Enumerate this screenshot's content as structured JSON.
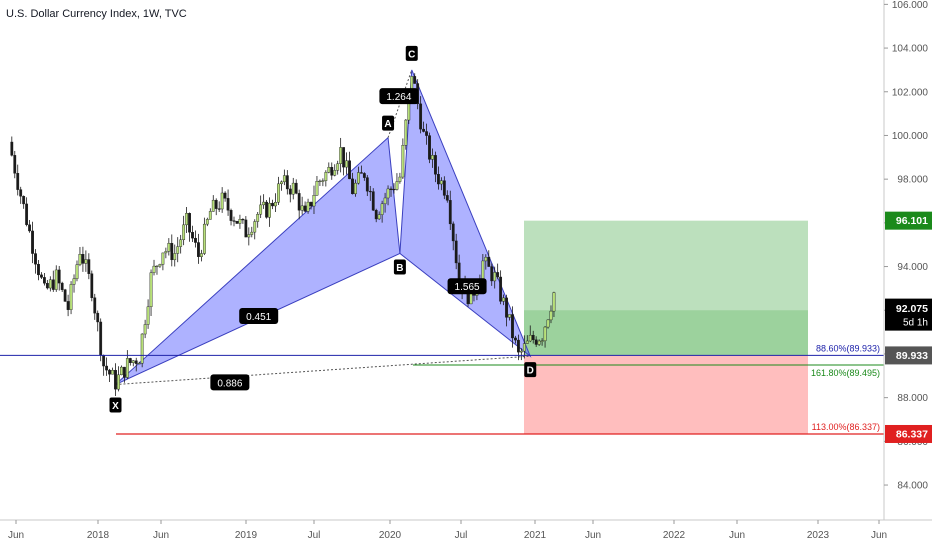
{
  "title": "U.S. Dollar Currency Index, 1W, TVC",
  "colors": {
    "candle_up": "#26a69a",
    "candle_down": "#ef5350",
    "pattern_fill": "#6c72ff",
    "target_zone": "#a5d6a7",
    "stop_zone": "#ffb3b3",
    "level_blue": "#1e22aa",
    "level_green": "#1b8a1b",
    "level_red": "#e02020",
    "current_price_bg": "#000000",
    "badge_green": "#1b8a1b",
    "badge_gray": "#555555",
    "badge_red": "#e02020"
  },
  "chart_data": {
    "type": "line",
    "symbol": "U.S. Dollar Currency Index",
    "interval": "1W",
    "source": "TVC",
    "y_axis": {
      "ticks": [
        "84.000",
        "86.000",
        "88.000",
        "90.000",
        "92.000",
        "94.000",
        "96.000",
        "98.000",
        "100.000",
        "102.000",
        "104.000",
        "106.000"
      ],
      "ylim": [
        82.4,
        106.2
      ]
    },
    "x_axis": {
      "ticks": [
        "Jun",
        "2018",
        "Jun",
        "2019",
        "Jul",
        "2020",
        "Apr",
        "Jul",
        "Oct",
        "2021",
        "Jun",
        "2022",
        "Jun",
        "2023",
        "Jun"
      ]
    },
    "price_path": [
      [
        "2017-05",
        99.7
      ],
      [
        "2017-06",
        97.3
      ],
      [
        "2017-07",
        95.0
      ],
      [
        "2017-08",
        92.8
      ],
      [
        "2017-09",
        93.5
      ],
      [
        "2017-10",
        92.1
      ],
      [
        "2017-11",
        94.8
      ],
      [
        "2017-12",
        93.0
      ],
      [
        "2018-01",
        89.5
      ],
      [
        "2018-02",
        88.7
      ],
      [
        "2018-03",
        89.5
      ],
      [
        "2018-04",
        89.9
      ],
      [
        "2018-05",
        93.5
      ],
      [
        "2018-06",
        94.8
      ],
      [
        "2018-07",
        94.6
      ],
      [
        "2018-08",
        96.0
      ],
      [
        "2018-09",
        94.5
      ],
      [
        "2018-10",
        96.5
      ],
      [
        "2018-11",
        97.0
      ],
      [
        "2018-12",
        96.3
      ],
      [
        "2019-01",
        95.6
      ],
      [
        "2019-02",
        96.4
      ],
      [
        "2019-03",
        96.7
      ],
      [
        "2019-04",
        97.8
      ],
      [
        "2019-05",
        97.6
      ],
      [
        "2019-06",
        96.2
      ],
      [
        "2019-07",
        97.8
      ],
      [
        "2019-08",
        98.4
      ],
      [
        "2019-09",
        99.3
      ],
      [
        "2019-10",
        97.5
      ],
      [
        "2019-11",
        98.3
      ],
      [
        "2019-12",
        96.5
      ],
      [
        "2020-01",
        97.4
      ],
      [
        "2020-02",
        98.1
      ],
      [
        "2020-03",
        102.9
      ],
      [
        "2020-04",
        100.0
      ],
      [
        "2020-05",
        98.3
      ],
      [
        "2020-06",
        97.4
      ],
      [
        "2020-07",
        93.4
      ],
      [
        "2020-08",
        92.5
      ],
      [
        "2020-09",
        94.2
      ],
      [
        "2020-10",
        93.5
      ],
      [
        "2020-11",
        91.9
      ],
      [
        "2020-12",
        89.9
      ],
      [
        "2021-01",
        90.6
      ],
      [
        "2021-02",
        90.9
      ],
      [
        "2021-03",
        92.8
      ]
    ],
    "harmonic_pattern": {
      "points": [
        {
          "label": "X",
          "date": "2018-02",
          "price": 88.6
        },
        {
          "label": "A",
          "date": "2020-01",
          "price": 99.9
        },
        {
          "label": "B",
          "date": "2020-02",
          "price": 94.6
        },
        {
          "label": "C",
          "date": "2020-03",
          "price": 103.0
        },
        {
          "label": "D",
          "date": "2021-01",
          "price": 89.9
        }
      ],
      "ratio_labels": [
        "0.451",
        "1.264",
        "1.565",
        "0.886"
      ]
    },
    "levels": [
      {
        "name": "entry",
        "label": "88.60%(89.933)",
        "price": 89.933
      },
      {
        "name": "target_ext",
        "label": "161.80%(89.495)",
        "price": 89.495
      },
      {
        "name": "stop",
        "label": "113.00%(86.337)",
        "price": 86.337
      }
    ],
    "position": {
      "entry": 89.933,
      "target": 96.101,
      "stop": 86.337,
      "current": 92.0
    },
    "price_badges": {
      "target": "96.101",
      "current": "92.075",
      "current_countdown": "5d 1h",
      "entry": "89.933",
      "stop": "86.337"
    }
  }
}
